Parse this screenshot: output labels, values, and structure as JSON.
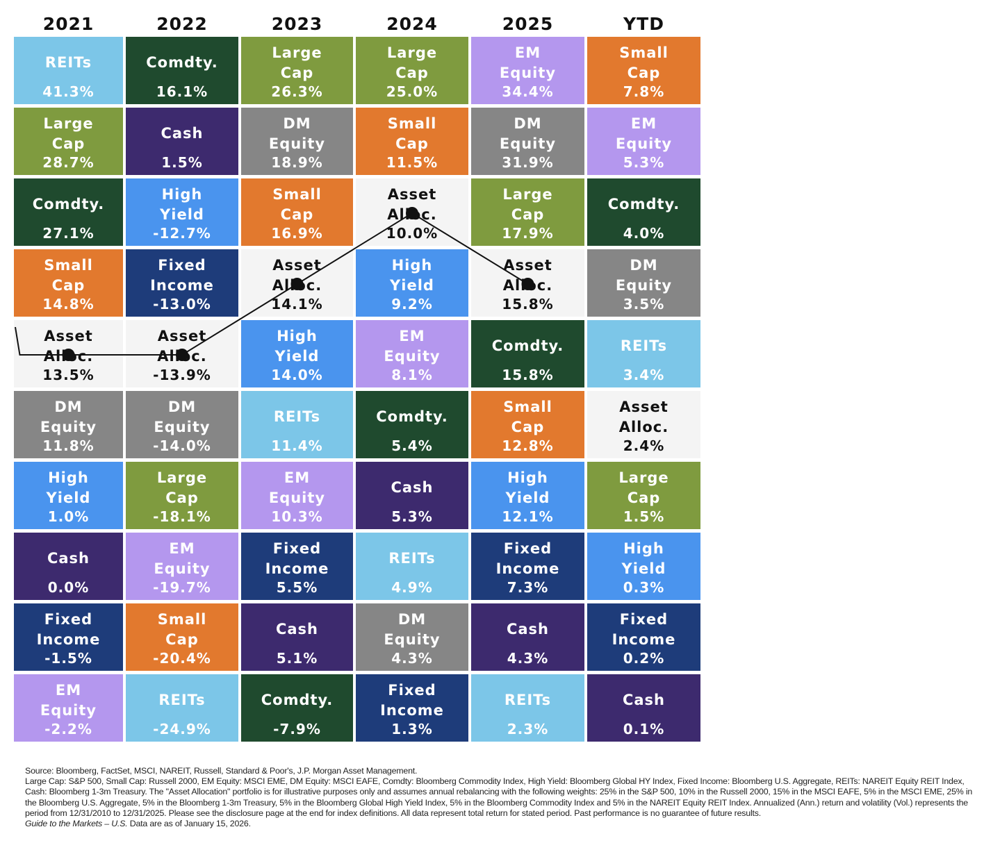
{
  "chart_data": {
    "type": "table",
    "columns": [
      "2021",
      "2022",
      "2023",
      "2024",
      "2025",
      "YTD"
    ],
    "highlight_series": "Asset Alloc.",
    "colors": {
      "REITs": "#7cc6e8",
      "Large Cap": "#7f9b3f",
      "Small Cap": "#e2792e",
      "EM Equity": "#b497ee",
      "DM Equity": "#868686",
      "Comdty.": "#1f4a2e",
      "Cash": "#3d2a6e",
      "High Yield": "#4a94ee",
      "Fixed Income": "#1e3c7a",
      "Asset Alloc.": "#f4f4f4"
    },
    "text_colors": {
      "REITs": "#ffffff",
      "Large Cap": "#ffffff",
      "Small Cap": "#ffffff",
      "EM Equity": "#ffffff",
      "DM Equity": "#ffffff",
      "Comdty.": "#ffffff",
      "Cash": "#ffffff",
      "High Yield": "#ffffff",
      "Fixed Income": "#ffffff",
      "Asset Alloc.": "#111111"
    },
    "display_names": {
      "REITs": "REITs",
      "Large Cap": "Large\nCap",
      "Small Cap": "Small\nCap",
      "EM Equity": "EM\nEquity",
      "DM Equity": "DM\nEquity",
      "Comdty.": "Comdty.",
      "Cash": "Cash",
      "High Yield": "High\nYield",
      "Fixed Income": "Fixed\nIncome",
      "Asset Alloc.": "Asset\nAlloc."
    },
    "data": [
      [
        {
          "asset": "REITs",
          "value": "41.3%"
        },
        {
          "asset": "Large Cap",
          "value": "28.7%"
        },
        {
          "asset": "Comdty.",
          "value": "27.1%"
        },
        {
          "asset": "Small Cap",
          "value": "14.8%"
        },
        {
          "asset": "Asset Alloc.",
          "value": "13.5%"
        },
        {
          "asset": "DM Equity",
          "value": "11.8%"
        },
        {
          "asset": "High Yield",
          "value": "1.0%"
        },
        {
          "asset": "Cash",
          "value": "0.0%"
        },
        {
          "asset": "Fixed Income",
          "value": "-1.5%"
        },
        {
          "asset": "EM Equity",
          "value": "-2.2%"
        }
      ],
      [
        {
          "asset": "Comdty.",
          "value": "16.1%"
        },
        {
          "asset": "Cash",
          "value": "1.5%"
        },
        {
          "asset": "High Yield",
          "value": "-12.7%"
        },
        {
          "asset": "Fixed Income",
          "value": "-13.0%"
        },
        {
          "asset": "Asset Alloc.",
          "value": "-13.9%"
        },
        {
          "asset": "DM Equity",
          "value": "-14.0%"
        },
        {
          "asset": "Large Cap",
          "value": "-18.1%"
        },
        {
          "asset": "EM Equity",
          "value": "-19.7%"
        },
        {
          "asset": "Small Cap",
          "value": "-20.4%"
        },
        {
          "asset": "REITs",
          "value": "-24.9%"
        }
      ],
      [
        {
          "asset": "Large Cap",
          "value": "26.3%"
        },
        {
          "asset": "DM Equity",
          "value": "18.9%"
        },
        {
          "asset": "Small Cap",
          "value": "16.9%"
        },
        {
          "asset": "Asset Alloc.",
          "value": "14.1%"
        },
        {
          "asset": "High Yield",
          "value": "14.0%"
        },
        {
          "asset": "REITs",
          "value": "11.4%"
        },
        {
          "asset": "EM Equity",
          "value": "10.3%"
        },
        {
          "asset": "Fixed Income",
          "value": "5.5%"
        },
        {
          "asset": "Cash",
          "value": "5.1%"
        },
        {
          "asset": "Comdty.",
          "value": "-7.9%"
        }
      ],
      [
        {
          "asset": "Large Cap",
          "value": "25.0%"
        },
        {
          "asset": "Small Cap",
          "value": "11.5%"
        },
        {
          "asset": "Asset Alloc.",
          "value": "10.0%"
        },
        {
          "asset": "High Yield",
          "value": "9.2%"
        },
        {
          "asset": "EM Equity",
          "value": "8.1%"
        },
        {
          "asset": "Comdty.",
          "value": "5.4%"
        },
        {
          "asset": "Cash",
          "value": "5.3%"
        },
        {
          "asset": "REITs",
          "value": "4.9%"
        },
        {
          "asset": "DM Equity",
          "value": "4.3%"
        },
        {
          "asset": "Fixed Income",
          "value": "1.3%"
        }
      ],
      [
        {
          "asset": "EM Equity",
          "value": "34.4%"
        },
        {
          "asset": "DM Equity",
          "value": "31.9%"
        },
        {
          "asset": "Large Cap",
          "value": "17.9%"
        },
        {
          "asset": "Asset Alloc.",
          "value": "15.8%"
        },
        {
          "asset": "Comdty.",
          "value": "15.8%"
        },
        {
          "asset": "Small Cap",
          "value": "12.8%"
        },
        {
          "asset": "High Yield",
          "value": "12.1%"
        },
        {
          "asset": "Fixed Income",
          "value": "7.3%"
        },
        {
          "asset": "Cash",
          "value": "4.3%"
        },
        {
          "asset": "REITs",
          "value": "2.3%"
        }
      ],
      [
        {
          "asset": "Small Cap",
          "value": "7.8%"
        },
        {
          "asset": "EM Equity",
          "value": "5.3%"
        },
        {
          "asset": "Comdty.",
          "value": "4.0%"
        },
        {
          "asset": "DM Equity",
          "value": "3.5%"
        },
        {
          "asset": "REITs",
          "value": "3.4%"
        },
        {
          "asset": "Asset Alloc.",
          "value": "2.4%"
        },
        {
          "asset": "Large Cap",
          "value": "1.5%"
        },
        {
          "asset": "High Yield",
          "value": "0.3%"
        },
        {
          "asset": "Fixed Income",
          "value": "0.2%"
        },
        {
          "asset": "Cash",
          "value": "0.1%"
        }
      ]
    ]
  },
  "footer": {
    "source": "Source: Bloomberg, FactSet, MSCI, NAREIT, Russell, Standard & Poor's, J.P. Morgan Asset Management.",
    "definitions": "Large Cap: S&P 500, Small Cap: Russell 2000, EM Equity: MSCI EME, DM Equity: MSCI EAFE, Comdty: Bloomberg Commodity Index, High Yield: Bloomberg Global HY Index, Fixed Income: Bloomberg U.S. Aggregate, REITs: NAREIT Equity REIT Index, Cash: Bloomberg 1-3m Treasury. The \"Asset Allocation\" portfolio is for illustrative purposes only and assumes annual rebalancing with the following weights: 25% in the S&P 500, 10% in the Russell 2000, 15% in the MSCI EAFE, 5% in the MSCI EME, 25% in the Bloomberg U.S. Aggregate, 5% in the Bloomberg 1-3m Treasury, 5% in the Bloomberg Global High Yield Index, 5% in the Bloomberg Commodity Index and 5% in the NAREIT Equity REIT Index. Annualized (Ann.) return and volatility (Vol.) represents the period from 12/31/2010 to 12/31/2025. Please see the disclosure page at the end for index definitions. All data represent total return for stated period. Past performance is no guarantee of future results.",
    "guide_title": "Guide to the Markets – U.S.",
    "guide_date": " Data are as of January 15, 2026."
  }
}
